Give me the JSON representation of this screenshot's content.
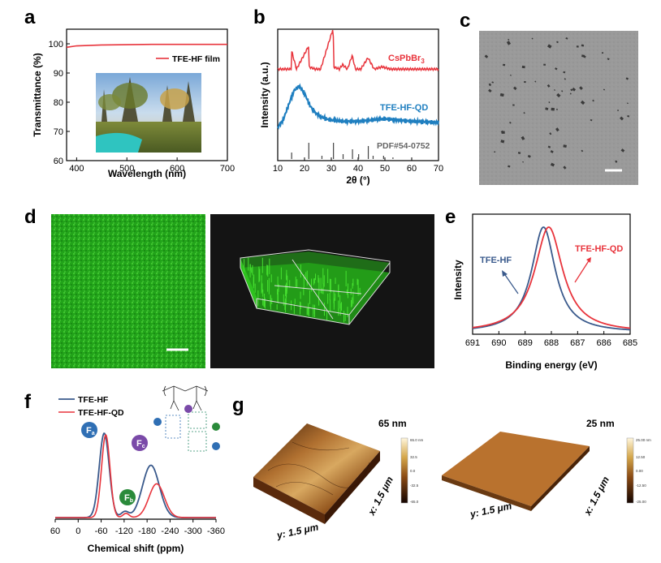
{
  "figure": {
    "panel_labels": {
      "a": "a",
      "b": "b",
      "c": "c",
      "d": "d",
      "e": "e",
      "f": "f",
      "g": "g"
    }
  },
  "colors": {
    "red": "#e8343c",
    "blue": "#1f7fc0",
    "navy": "#3a5a8c",
    "green_fluor": "#2ec21e",
    "photo_sky": "#8fb4d8"
  },
  "chart_data": [
    {
      "panel": "a",
      "type": "line",
      "xlabel": "Wavelength (nm)",
      "ylabel": "Transmittance (%)",
      "xlim": [
        380,
        700
      ],
      "ylim": [
        60,
        105
      ],
      "xticks": [
        "400",
        "500",
        "600",
        "700"
      ],
      "yticks": [
        "60",
        "70",
        "80",
        "90",
        "100"
      ],
      "legend": "TFE-HF film",
      "series": [
        {
          "name": "TFE-HF film",
          "x": [
            380,
            400,
            450,
            500,
            550,
            600,
            650,
            700
          ],
          "values": [
            98.8,
            99.3,
            99.6,
            99.7,
            99.8,
            99.8,
            99.8,
            99.8
          ]
        }
      ]
    },
    {
      "panel": "b",
      "type": "line",
      "xlabel": "2θ (°)",
      "ylabel": "Intensity (a.u.)",
      "xlim": [
        10,
        70
      ],
      "xticks": [
        "10",
        "20",
        "30",
        "40",
        "50",
        "60",
        "70"
      ],
      "labels": {
        "top": "CsPbBr",
        "top_sub": "3",
        "mid": "TFE-HF-QD",
        "bottom": "PDF#54-0752"
      },
      "series": [
        {
          "name": "CsPbBr3",
          "x": [
            10,
            15,
            15.2,
            17,
            21.5,
            21.7,
            24,
            26,
            30.7,
            30.9,
            33,
            34.2,
            36,
            37.8,
            39,
            41,
            43.7,
            46,
            49,
            52,
            60,
            70
          ],
          "values": [
            0.1,
            0.1,
            0.9,
            0.1,
            1.1,
            0.2,
            0.1,
            0.1,
            1.9,
            0.2,
            0.1,
            0.3,
            0.1,
            0.7,
            0.1,
            0.1,
            0.6,
            0.1,
            0.2,
            0.1,
            0.1,
            0.1
          ]
        },
        {
          "name": "TFE-HF-QD",
          "x": [
            10,
            12,
            14,
            16,
            18,
            20,
            22,
            24,
            26,
            28,
            30,
            34,
            40,
            50,
            60,
            70
          ],
          "values": [
            0.0,
            0.3,
            0.9,
            1.5,
            1.7,
            1.4,
            0.9,
            0.6,
            0.45,
            0.35,
            0.3,
            0.25,
            0.25,
            0.35,
            0.25,
            0.2
          ]
        },
        {
          "name": "PDF#54-0752",
          "x": [
            15.2,
            21.6,
            26.5,
            30.8,
            34.4,
            37.9,
            40.2,
            43.8,
            45.6,
            49.5,
            53
          ],
          "values": [
            0.4,
            1.0,
            0.2,
            1.0,
            0.3,
            0.6,
            0.3,
            0.8,
            0.2,
            0.2,
            0.1
          ]
        }
      ]
    },
    {
      "panel": "e",
      "type": "line",
      "xlabel": "Binding energy (eV)",
      "ylabel": "Intensity",
      "xlim": [
        691,
        685
      ],
      "xticks": [
        "691",
        "690",
        "689",
        "688",
        "687",
        "686",
        "685"
      ],
      "labels": {
        "blue": "TFE-HF",
        "red": "TFE-HF-QD"
      },
      "series": [
        {
          "name": "TFE-HF",
          "center": 688.3,
          "width": 0.55
        },
        {
          "name": "TFE-HF-QD",
          "center": 688.1,
          "width": 0.65
        }
      ]
    },
    {
      "panel": "f",
      "type": "line",
      "xlabel": "Chemical shift (ppm)",
      "xlim": [
        60,
        -360
      ],
      "xticks": [
        "60",
        "0",
        "-60",
        "-120",
        "-180",
        "-240",
        "-300",
        "-360"
      ],
      "legend": [
        "TFE-HF",
        "TFE-HF-QD"
      ],
      "badges": {
        "fa": "F",
        "fa_sub": "a",
        "fb": "F",
        "fb_sub": "b",
        "fc": "F",
        "fc_sub": "c"
      },
      "series": [
        {
          "name": "TFE-HF",
          "peaks": [
            [
              -68,
              1.0,
              13
            ],
            [
              -122,
              0.07,
              10
            ],
            [
              -190,
              0.62,
              22
            ]
          ]
        },
        {
          "name": "TFE-HF-QD",
          "peaks": [
            [
              -72,
              0.98,
              11
            ],
            [
              -125,
              0.05,
              8
            ],
            [
              -205,
              0.4,
              20
            ]
          ]
        }
      ]
    }
  ],
  "panel_g": {
    "left_scale": "65 nm",
    "right_scale": "25 nm",
    "x_axis": "x: 1.5 μm",
    "y_axis": "y: 1.5 μm",
    "left_colorbar": [
      "65.0 nm",
      "32.5",
      "0.0",
      "-32.5",
      "-65.0"
    ],
    "right_colorbar": [
      "25.00 nm",
      "12.50",
      "0.00",
      "-12.50",
      "-25.00"
    ]
  }
}
